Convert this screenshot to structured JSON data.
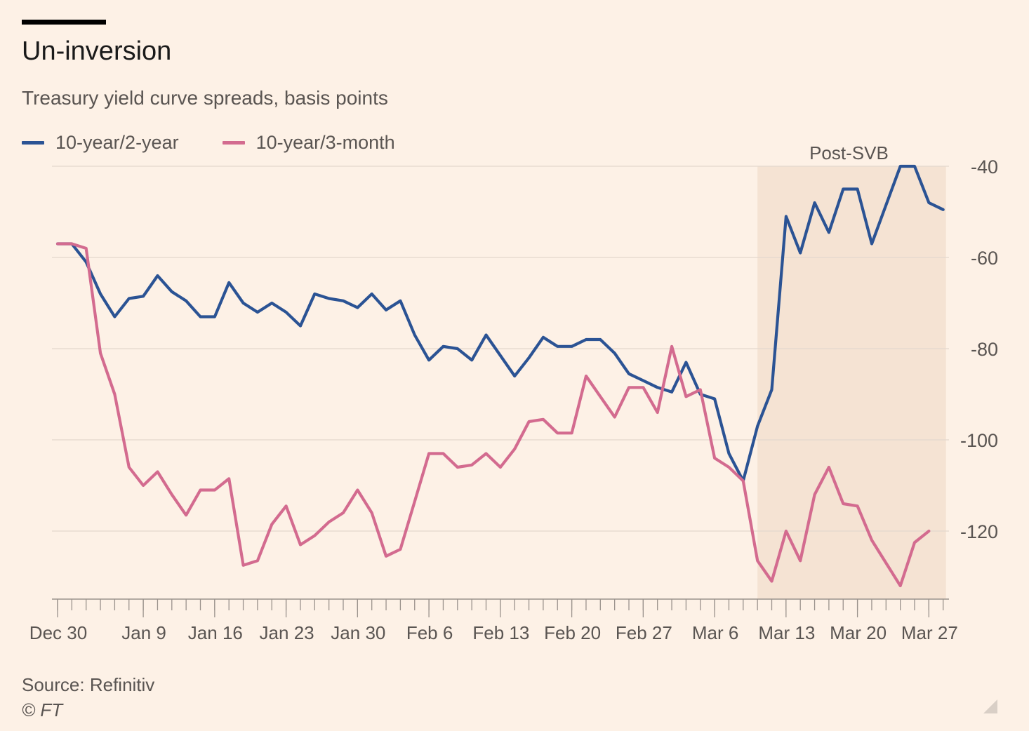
{
  "title": "Un-inversion",
  "subtitle": "Treasury yield curve spreads, basis points",
  "source": "Source: Refinitiv",
  "copyright": "© FT",
  "icons": {
    "resize": "resize-handle-icon"
  },
  "colors": {
    "background": "#fdf1e6",
    "series_2y": "#2b5394",
    "series_3m": "#d36b8f",
    "shade": "#f5e3d3",
    "grid": "#e4d8cd",
    "axis": "#9a928c"
  },
  "chart_data": {
    "type": "line",
    "title": "Un-inversion",
    "subtitle": "Treasury yield curve spreads, basis points",
    "xlabel": "",
    "ylabel": "",
    "ylim": [
      -134,
      -40
    ],
    "yticks": [
      -40,
      -60,
      -80,
      -100,
      -120
    ],
    "ytick_labels": [
      "-40",
      "-60",
      "-80",
      "-100",
      "-120"
    ],
    "y_axis_side": "right",
    "grid": true,
    "legend_position": "top-left",
    "x_tick_labels": [
      "Dec 30",
      "Jan 9",
      "Jan 16",
      "Jan 23",
      "Jan 30",
      "Feb 6",
      "Feb 13",
      "Feb 20",
      "Feb 27",
      "Mar 6",
      "Mar 13",
      "Mar 20",
      "Mar 27"
    ],
    "x_tick_positions": [
      0,
      6,
      11,
      16,
      21,
      26,
      31,
      36,
      41,
      46,
      51,
      56,
      61
    ],
    "x_minor_ticks": 64,
    "shaded_region": {
      "label": "Post-SVB",
      "x_start": 49,
      "x_end": 62.2
    },
    "series": [
      {
        "name": "10-year/2-year",
        "color": "#2b5394",
        "values": [
          -57,
          -57,
          -61,
          -68,
          -73,
          -69,
          -68.5,
          -64,
          -67.5,
          -69.5,
          -73,
          -73,
          -65.5,
          -70,
          -72,
          -70,
          -72,
          -75,
          -68,
          -69,
          -69.5,
          -71,
          -68,
          -71.5,
          -69.5,
          -77,
          -82.5,
          -79.5,
          -80,
          -82.5,
          -77,
          -81.5,
          -86,
          -82,
          -77.5,
          -79.5,
          -79.5,
          -78,
          -78,
          -81,
          -85.5,
          -87,
          -88.5,
          -89.5,
          -83,
          -90,
          -91,
          -103,
          -109,
          -97,
          -89,
          -51,
          -59,
          -48,
          -54.5,
          -45,
          -45,
          -57,
          -48.5,
          -40,
          -40,
          -48,
          -49.5
        ]
      },
      {
        "name": "10-year/3-month",
        "color": "#d36b8f",
        "values": [
          -57,
          -57,
          -58,
          -81,
          -90,
          -106,
          -110,
          -107,
          -112,
          -116.5,
          -111,
          -111,
          -108.5,
          -127.5,
          -126.5,
          -118.5,
          -114.5,
          -123,
          -121,
          -118,
          -116,
          -111,
          -116,
          -125.5,
          -124,
          -113.5,
          -103,
          -103,
          -106,
          -105.5,
          -103,
          -106,
          -102,
          -96,
          -95.5,
          -98.5,
          -98.5,
          -86,
          -90.5,
          -95,
          -88.5,
          -88.5,
          -94,
          -79.5,
          -90.5,
          -89,
          -104,
          -106,
          -109,
          -126.5,
          -131,
          -120,
          -126.5,
          -112,
          -106,
          -114,
          -114.5,
          -122,
          -127,
          -132,
          -122.5,
          -120
        ]
      }
    ]
  }
}
